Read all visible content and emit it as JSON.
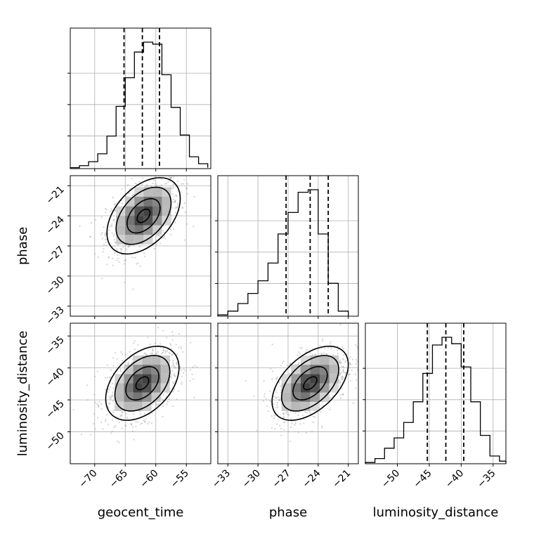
{
  "chart_data": {
    "type": "corner",
    "parameters": [
      {
        "name": "geocent_time",
        "range": [
          -74,
          -51
        ],
        "ticks": [
          -70,
          -65,
          -60,
          -55
        ],
        "quantiles": [
          -65.2,
          -62.2,
          -59.4
        ],
        "hist_bins": [
          -74,
          -72.5,
          -71,
          -69.5,
          -68,
          -66.5,
          -65,
          -63.5,
          -62,
          -60.5,
          -59,
          -57.5,
          -56,
          -54.5,
          -53,
          -51.5
        ],
        "hist_counts": [
          1,
          3,
          7,
          15,
          33,
          63,
          92,
          118,
          128,
          126,
          95,
          62,
          34,
          12,
          5,
          1
        ]
      },
      {
        "name": "phase",
        "range": [
          -34,
          -20
        ],
        "ticks": [
          -33,
          -30,
          -27,
          -24,
          -21
        ],
        "quantiles": [
          -27.2,
          -24.8,
          -23.0
        ],
        "hist_bins": [
          -34,
          -33,
          -32,
          -31,
          -30,
          -29,
          -28,
          -27,
          -26,
          -25,
          -24,
          -23,
          -22,
          -21
        ],
        "hist_counts": [
          0.01,
          0.04,
          0.1,
          0.18,
          0.28,
          0.42,
          0.65,
          0.82,
          0.98,
          1.0,
          0.65,
          0.26,
          0.04
        ]
      },
      {
        "name": "luminosity_distance",
        "range": [
          -55,
          -33
        ],
        "ticks": [
          -50,
          -45,
          -40,
          -35
        ],
        "quantiles": [
          -45.3,
          -42.4,
          -39.6
        ],
        "hist_bins": [
          -55,
          -53.5,
          -52,
          -50.5,
          -49,
          -47.5,
          -46,
          -44.5,
          -43,
          -41.5,
          -40,
          -38.5,
          -37,
          -35.5,
          -34,
          -33
        ],
        "hist_counts": [
          0.01,
          0.04,
          0.12,
          0.2,
          0.32,
          0.48,
          0.7,
          0.92,
          0.98,
          0.93,
          0.75,
          0.48,
          0.22,
          0.06,
          0.02
        ]
      }
    ],
    "pairs": [
      {
        "x": "geocent_time",
        "y": "phase",
        "center": [
          -62,
          -24
        ],
        "sd": [
          3.0,
          1.9
        ],
        "corr": 0.45
      },
      {
        "x": "geocent_time",
        "y": "luminosity_distance",
        "center": [
          -62.2,
          -42.4
        ],
        "sd": [
          3.0,
          2.9
        ],
        "corr": 0.42
      },
      {
        "x": "phase",
        "y": "luminosity_distance",
        "center": [
          -24.8,
          -42.4
        ],
        "sd": [
          1.9,
          2.9
        ],
        "corr": 0.5
      }
    ],
    "grid": true
  },
  "colors": {
    "axis": "#000000",
    "grid": "#b0b0b0",
    "scatter": "#9e9e9e"
  }
}
